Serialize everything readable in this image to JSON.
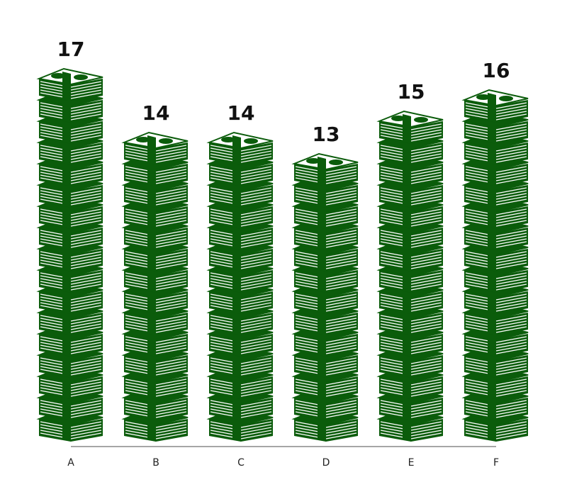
{
  "chart_data": {
    "type": "bar",
    "style": "pictograph-money-stacks",
    "categories": [
      "A",
      "B",
      "C",
      "D",
      "E",
      "F"
    ],
    "values": [
      17,
      14,
      14,
      13,
      15,
      16
    ],
    "title": "",
    "xlabel": "",
    "ylabel": "",
    "grid": false,
    "legend": "none",
    "colors": {
      "bill": "#0b5c0b",
      "bill_light": "#ffffff",
      "band": "#0b5c0b",
      "axis": "#888888"
    }
  }
}
